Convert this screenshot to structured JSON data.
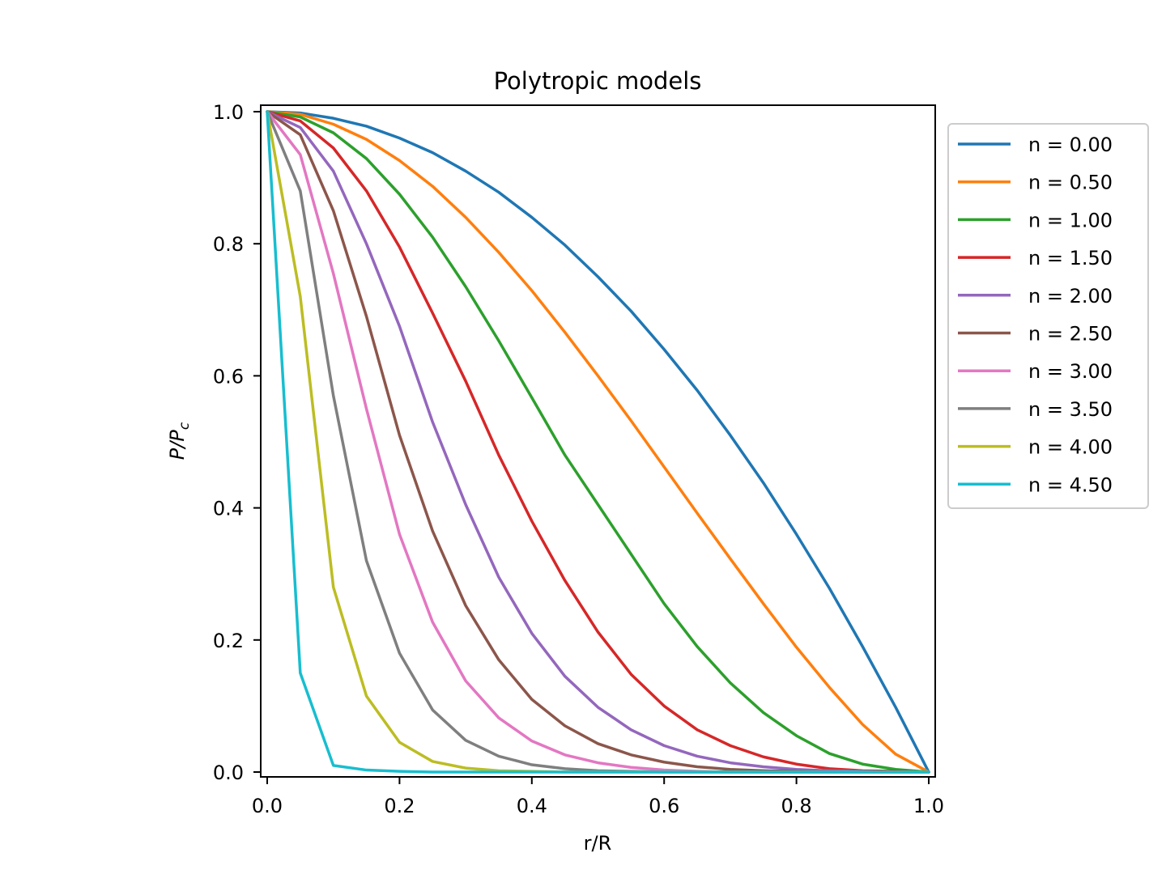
{
  "chart_data": {
    "type": "line",
    "title": "Polytropic models",
    "xlabel": "r/R",
    "ylabel": "P/P",
    "ylabel_subscript": "c",
    "xlim": [
      0.0,
      1.0
    ],
    "ylim": [
      0.0,
      1.0
    ],
    "xticks": [
      "0.0",
      "0.2",
      "0.4",
      "0.6",
      "0.8",
      "1.0"
    ],
    "yticks": [
      "0.0",
      "0.2",
      "0.4",
      "0.6",
      "0.8",
      "1.0"
    ],
    "grid": false,
    "legend_position": "outside-right-top",
    "x": [
      0.0,
      0.05,
      0.1,
      0.15,
      0.2,
      0.25,
      0.3,
      0.35,
      0.4,
      0.45,
      0.5,
      0.55,
      0.6,
      0.65,
      0.7,
      0.75,
      0.8,
      0.85,
      0.9,
      0.95,
      1.0
    ],
    "series": [
      {
        "name": "n = 0.00",
        "color": "#1f77b4",
        "values": [
          1.0,
          0.998,
          0.99,
          0.978,
          0.96,
          0.938,
          0.91,
          0.878,
          0.84,
          0.798,
          0.75,
          0.698,
          0.64,
          0.578,
          0.51,
          0.438,
          0.36,
          0.278,
          0.19,
          0.098,
          0.0
        ]
      },
      {
        "name": "n = 0.50",
        "color": "#ff7f0e",
        "values": [
          1.0,
          0.996,
          0.981,
          0.958,
          0.926,
          0.887,
          0.84,
          0.787,
          0.729,
          0.666,
          0.6,
          0.532,
          0.462,
          0.392,
          0.323,
          0.255,
          0.189,
          0.128,
          0.072,
          0.027,
          0.0
        ]
      },
      {
        "name": "n = 1.00",
        "color": "#2ca02c",
        "values": [
          1.0,
          0.992,
          0.968,
          0.929,
          0.875,
          0.81,
          0.735,
          0.653,
          0.567,
          0.48,
          0.405,
          0.33,
          0.255,
          0.19,
          0.135,
          0.09,
          0.055,
          0.028,
          0.012,
          0.004,
          0.0
        ]
      },
      {
        "name": "n = 1.50",
        "color": "#d62728",
        "values": [
          1.0,
          0.986,
          0.945,
          0.88,
          0.795,
          0.695,
          0.592,
          0.48,
          0.38,
          0.29,
          0.212,
          0.148,
          0.1,
          0.064,
          0.04,
          0.023,
          0.012,
          0.005,
          0.002,
          0.001,
          0.0
        ]
      },
      {
        "name": "n = 2.00",
        "color": "#9467bd",
        "values": [
          1.0,
          0.976,
          0.91,
          0.8,
          0.675,
          0.53,
          0.405,
          0.295,
          0.21,
          0.145,
          0.098,
          0.064,
          0.04,
          0.024,
          0.014,
          0.008,
          0.004,
          0.002,
          0.001,
          0.0,
          0.0
        ]
      },
      {
        "name": "n = 2.50",
        "color": "#8c564b",
        "values": [
          1.0,
          0.965,
          0.85,
          0.69,
          0.51,
          0.365,
          0.252,
          0.17,
          0.11,
          0.07,
          0.043,
          0.026,
          0.015,
          0.008,
          0.004,
          0.002,
          0.001,
          0.0,
          0.0,
          0.0,
          0.0
        ]
      },
      {
        "name": "n = 3.00",
        "color": "#e377c2",
        "values": [
          1.0,
          0.935,
          0.755,
          0.55,
          0.36,
          0.227,
          0.138,
          0.082,
          0.047,
          0.026,
          0.014,
          0.007,
          0.003,
          0.001,
          0.0,
          0.0,
          0.0,
          0.0,
          0.0,
          0.0,
          0.0
        ]
      },
      {
        "name": "n = 3.50",
        "color": "#7f7f7f",
        "values": [
          1.0,
          0.88,
          0.57,
          0.32,
          0.18,
          0.094,
          0.048,
          0.024,
          0.011,
          0.005,
          0.002,
          0.001,
          0.0,
          0.0,
          0.0,
          0.0,
          0.0,
          0.0,
          0.0,
          0.0,
          0.0
        ]
      },
      {
        "name": "n = 4.00",
        "color": "#bcbd22",
        "values": [
          1.0,
          0.72,
          0.28,
          0.115,
          0.045,
          0.016,
          0.006,
          0.002,
          0.001,
          0.0,
          0.0,
          0.0,
          0.0,
          0.0,
          0.0,
          0.0,
          0.0,
          0.0,
          0.0,
          0.0,
          0.0
        ]
      },
      {
        "name": "n = 4.50",
        "color": "#17becf",
        "values": [
          1.0,
          0.15,
          0.01,
          0.003,
          0.001,
          0.0,
          0.0,
          0.0,
          0.0,
          0.0,
          0.0,
          0.0,
          0.0,
          0.0,
          0.0,
          0.0,
          0.0,
          0.0,
          0.0,
          0.0,
          0.0
        ]
      }
    ]
  }
}
